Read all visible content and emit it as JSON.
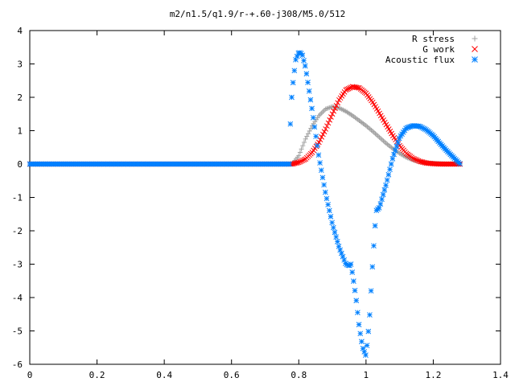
{
  "chart_data": {
    "type": "scatter",
    "title": "m2/n1.5/q1.9/r-+.60-j308/M5.0/512",
    "xlabel": "",
    "ylabel": "",
    "xlim": [
      0,
      1.4
    ],
    "ylim": [
      -6,
      4
    ],
    "x_ticks": [
      "0",
      "0.2",
      "0.4",
      "0.6",
      "0.8",
      "1",
      "1.2",
      "1.4"
    ],
    "y_ticks": [
      "4",
      "3",
      "2",
      "1",
      "0",
      "-1",
      "-2",
      "-3",
      "-4",
      "-5",
      "-6"
    ],
    "grid": false,
    "legend_position": "top-right",
    "series": [
      {
        "name": "R stress",
        "marker": "+",
        "color": "#a0a0a0",
        "x": [
          0.78,
          0.8,
          0.82,
          0.84,
          0.86,
          0.88,
          0.9,
          0.92,
          0.94,
          0.96,
          0.98,
          1.0,
          1.02,
          1.04,
          1.06,
          1.08,
          1.1,
          1.12,
          1.14,
          1.16,
          1.18,
          1.2,
          1.22,
          1.24,
          1.26,
          1.28
        ],
        "y": [
          0.0,
          0.25,
          0.75,
          1.15,
          1.45,
          1.65,
          1.72,
          1.68,
          1.58,
          1.45,
          1.3,
          1.15,
          0.98,
          0.8,
          0.62,
          0.46,
          0.32,
          0.2,
          0.12,
          0.07,
          0.03,
          0.02,
          0.01,
          0.0,
          0.0,
          0.0
        ]
      },
      {
        "name": "G work",
        "marker": "x",
        "color": "#ff0000",
        "x": [
          0.78,
          0.8,
          0.82,
          0.84,
          0.86,
          0.88,
          0.9,
          0.92,
          0.94,
          0.96,
          0.98,
          1.0,
          1.02,
          1.04,
          1.06,
          1.08,
          1.1,
          1.12,
          1.14,
          1.16,
          1.18,
          1.2,
          1.22,
          1.24,
          1.26,
          1.28
        ],
        "y": [
          0.0,
          0.05,
          0.15,
          0.35,
          0.65,
          1.05,
          1.5,
          1.92,
          2.22,
          2.32,
          2.28,
          2.12,
          1.85,
          1.52,
          1.18,
          0.85,
          0.55,
          0.32,
          0.17,
          0.08,
          0.03,
          0.01,
          0.0,
          0.0,
          0.0,
          0.0
        ]
      },
      {
        "name": "Acoustic flux",
        "marker": "*",
        "color": "#0080ff",
        "x": [
          0.775,
          0.78,
          0.785,
          0.79,
          0.8,
          0.81,
          0.82,
          0.84,
          0.86,
          0.88,
          0.9,
          0.92,
          0.94,
          0.95,
          0.955,
          0.96,
          0.97,
          0.98,
          0.99,
          1.0,
          1.01,
          1.02,
          1.03,
          1.04,
          1.06,
          1.08,
          1.1,
          1.12,
          1.14,
          1.16,
          1.18,
          1.2,
          1.22,
          1.24,
          1.26,
          1.28
        ],
        "y": [
          1.2,
          2.2,
          2.6,
          3.1,
          3.35,
          3.3,
          2.9,
          1.6,
          0.2,
          -0.9,
          -1.8,
          -2.5,
          -3.0,
          -3.05,
          -3.0,
          -3.3,
          -4.0,
          -4.9,
          -5.5,
          -5.75,
          -4.7,
          -2.9,
          -1.4,
          -1.3,
          -0.6,
          0.2,
          0.8,
          1.08,
          1.15,
          1.13,
          1.02,
          0.85,
          0.62,
          0.4,
          0.2,
          0.0
        ]
      }
    ]
  }
}
